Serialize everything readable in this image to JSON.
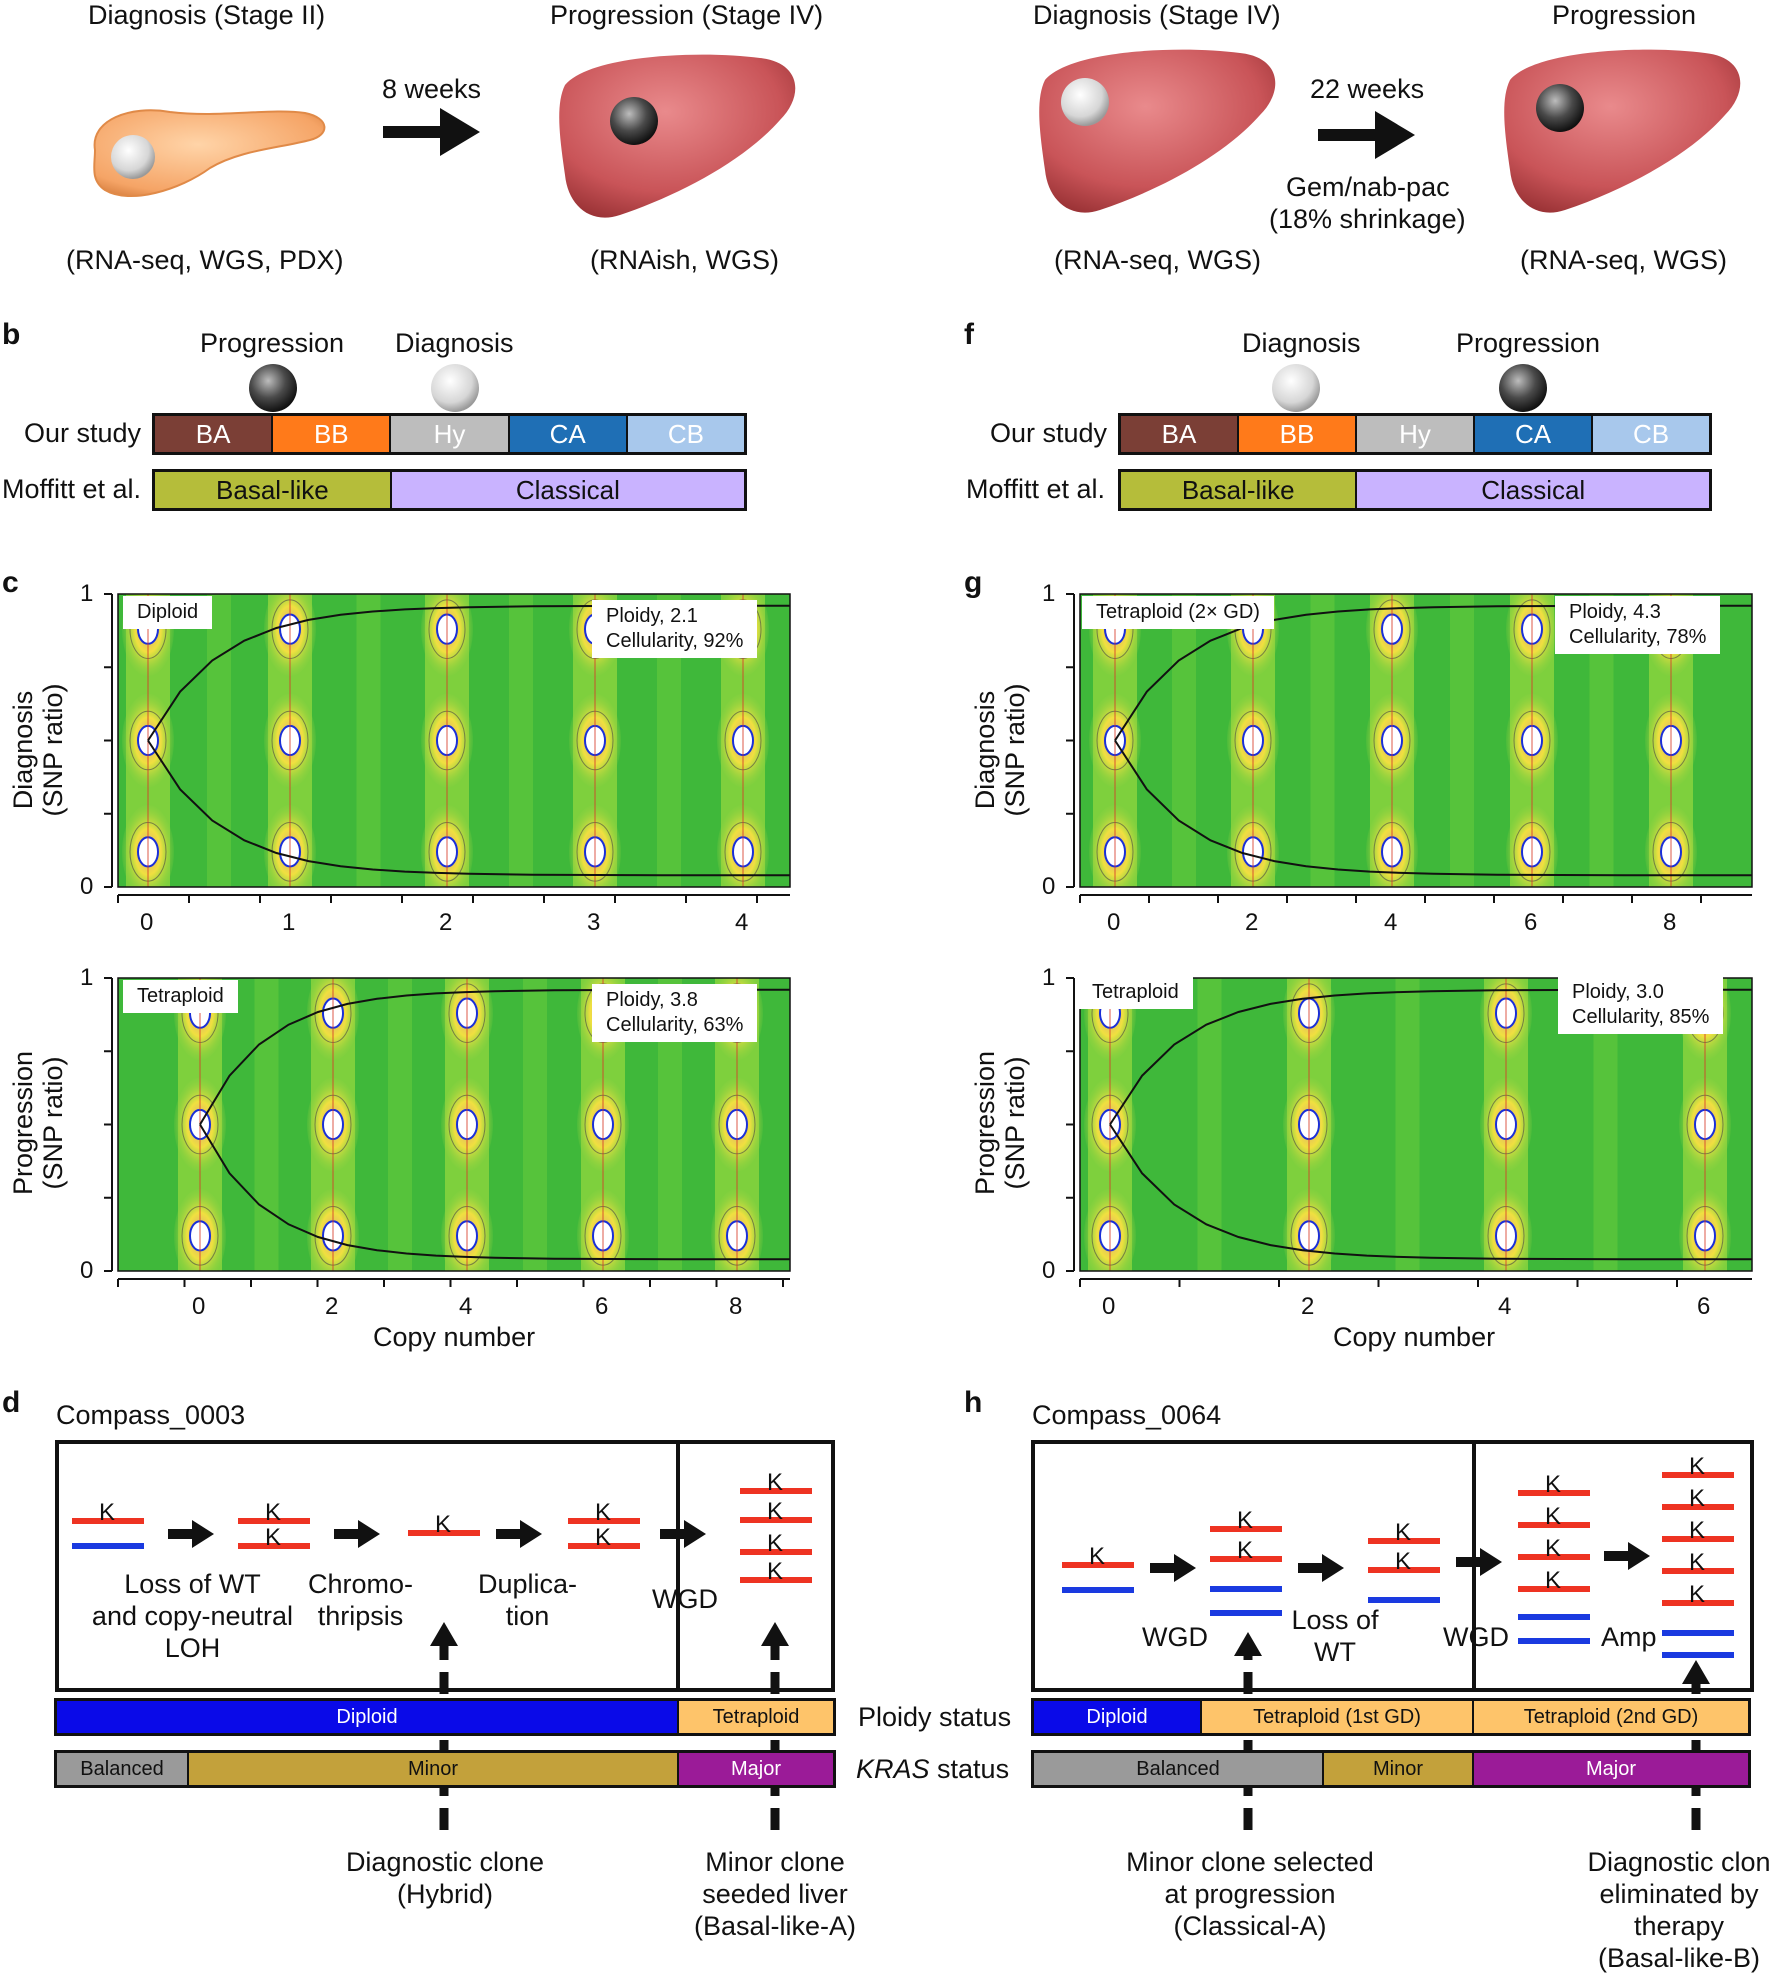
{
  "panelA": {
    "left": {
      "diag": "Diagnosis (Stage II)",
      "prog": "Progression (Stage IV)",
      "weeks": "8 weeks",
      "diag_assays": "(RNA-seq, WGS, PDX)",
      "prog_assays": "(RNAish, WGS)"
    },
    "right": {
      "diag": "Diagnosis (Stage IV)",
      "prog": "Progression",
      "weeks": "22 weeks",
      "therapy1": "Gem/nab-pac",
      "therapy2": "(18% shrinkage)",
      "diag_assays": "(RNA-seq, WGS)",
      "prog_assays": "(RNA-seq, WGS)"
    }
  },
  "panelB": {
    "letter": "b",
    "marker1": "Progression",
    "marker2": "Diagnosis",
    "row1_label": "Our study",
    "row2_label": "Moffitt et al.",
    "subtypes": [
      "BA",
      "BB",
      "Hy",
      "CA",
      "CB"
    ],
    "moffitt": [
      "Basal-like",
      "Classical"
    ]
  },
  "panelF": {
    "letter": "f",
    "marker1": "Diagnosis",
    "marker2": "Progression",
    "row1_label": "Our study",
    "row2_label": "Moffitt et al.",
    "subtypes": [
      "BA",
      "BB",
      "Hy",
      "CA",
      "CB"
    ],
    "moffitt": [
      "Basal-like",
      "Classical"
    ]
  },
  "colors": {
    "BA": "#7b3f36",
    "BB": "#ff7a1a",
    "Hy": "#bdbdbd",
    "CA": "#1f6fb5",
    "CB": "#a8c8ec",
    "basal": "#b5bd3a",
    "classical": "#c9b3ff",
    "diploid": "#0a0ae8",
    "tetraploid": "#fec46a",
    "balanced": "#9a9a9a",
    "minor": "#c3a13b",
    "major": "#9b1b98",
    "kras": "#ee3322",
    "wt": "#1a3ae0"
  },
  "panelC": {
    "letter": "c",
    "top": {
      "ylabel1": "Diagnosis",
      "ylabel2": "(SNP ratio)",
      "state": "Diploid",
      "ploidy": "Ploidy, 2.1",
      "cellularity": "Cellularity, 92%",
      "yticks": [
        "0",
        "1"
      ],
      "xticks": [
        "0",
        "1",
        "2",
        "3",
        "4"
      ]
    },
    "bottom": {
      "ylabel1": "Progression",
      "ylabel2": "(SNP ratio)",
      "state": "Tetraploid",
      "ploidy": "Ploidy, 3.8",
      "cellularity": "Cellularity, 63%",
      "yticks": [
        "0",
        "1"
      ],
      "xticks": [
        "0",
        "2",
        "4",
        "6",
        "8"
      ]
    },
    "xlabel": "Copy number"
  },
  "panelG": {
    "letter": "g",
    "top": {
      "ylabel1": "Diagnosis",
      "ylabel2": "(SNP ratio)",
      "state": "Tetraploid (2× GD)",
      "ploidy": "Ploidy, 4.3",
      "cellularity": "Cellularity, 78%",
      "yticks": [
        "0",
        "1"
      ],
      "xticks": [
        "0",
        "2",
        "4",
        "6",
        "8"
      ]
    },
    "bottom": {
      "ylabel1": "Progression",
      "ylabel2": "(SNP ratio)",
      "state": "Tetraploid",
      "ploidy": "Ploidy, 3.0",
      "cellularity": "Cellularity, 85%",
      "yticks": [
        "0",
        "1"
      ],
      "xticks": [
        "0",
        "2",
        "4",
        "6"
      ]
    },
    "xlabel": "Copy number"
  },
  "panelD": {
    "letter": "d",
    "title": "Compass_0003",
    "step1": [
      "Loss of WT",
      "and copy-neutral",
      "LOH"
    ],
    "step2": [
      "Chromo-",
      "thripsis"
    ],
    "step3": [
      "Duplica-",
      "tion"
    ],
    "step4": "WGD",
    "ploidy_segments": [
      "Diploid",
      "Tetraploid"
    ],
    "kras_segments": [
      "Balanced",
      "Minor",
      "Major"
    ],
    "note1": [
      "Diagnostic clone",
      "(Hybrid)"
    ],
    "note2": [
      "Minor clone",
      "seeded liver",
      "(Basal-like-A)"
    ],
    "k": "K"
  },
  "panelH": {
    "letter": "h",
    "title": "Compass_0064",
    "step1": "WGD",
    "step2": [
      "Loss of",
      "WT"
    ],
    "step3": "WGD",
    "step4": "Amp",
    "ploidy_segments": [
      "Diploid",
      "Tetraploid (1st GD)",
      "Tetraploid (2nd GD)"
    ],
    "kras_segments": [
      "Balanced",
      "Minor",
      "Major"
    ],
    "note1": [
      "Minor clone selected",
      "at progression",
      "(Classical-A)"
    ],
    "note2": [
      "Diagnostic clon",
      "eliminated by",
      "therapy",
      "(Basal-like-B)"
    ],
    "k": "K"
  },
  "middle": {
    "ploidy_status": "Ploidy status",
    "kras_italic": "KRAS",
    "kras_rest": " status"
  }
}
